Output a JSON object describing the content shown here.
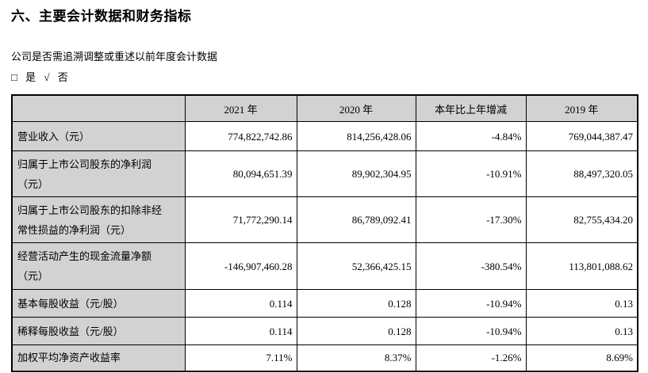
{
  "page": {
    "title": "六、主要会计数据和财务指标",
    "question": "公司是否需追溯调整或重述以前年度会计数据",
    "checkbox": {
      "yes_box_glyph": "□",
      "yes_label": "是",
      "check_glyph": "√",
      "no_label": "否"
    }
  },
  "table": {
    "headers": [
      "",
      "2021 年",
      "2020 年",
      "本年比上年增减",
      "2019 年"
    ],
    "rows": [
      {
        "label": "营业收入（元）",
        "values": [
          "774,822,742.86",
          "814,256,428.06",
          "-4.84%",
          "769,044,387.47"
        ]
      },
      {
        "label": "归属于上市公司股东的净利润\n（元）",
        "values": [
          "80,094,651.39",
          "89,902,304.95",
          "-10.91%",
          "88,497,320.05"
        ]
      },
      {
        "label": "归属于上市公司股东的扣除非经\n常性损益的净利润（元）",
        "values": [
          "71,772,290.14",
          "86,789,092.41",
          "-17.30%",
          "82,755,434.20"
        ]
      },
      {
        "label": "经营活动产生的现金流量净额\n（元）",
        "values": [
          "-146,907,460.28",
          "52,366,425.15",
          "-380.54%",
          "113,801,088.62"
        ]
      },
      {
        "label": "基本每股收益（元/股）",
        "values": [
          "0.114",
          "0.128",
          "-10.94%",
          "0.13"
        ]
      },
      {
        "label": "稀释每股收益（元/股）",
        "values": [
          "0.114",
          "0.128",
          "-10.94%",
          "0.13"
        ]
      },
      {
        "label": "加权平均净资产收益率",
        "values": [
          "7.11%",
          "8.37%",
          "-1.26%",
          "8.69%"
        ]
      }
    ]
  },
  "colors": {
    "header_bg": "#d2d2d2",
    "label_bg": "#d2d2d2",
    "border": "#000000",
    "text": "#000000"
  }
}
